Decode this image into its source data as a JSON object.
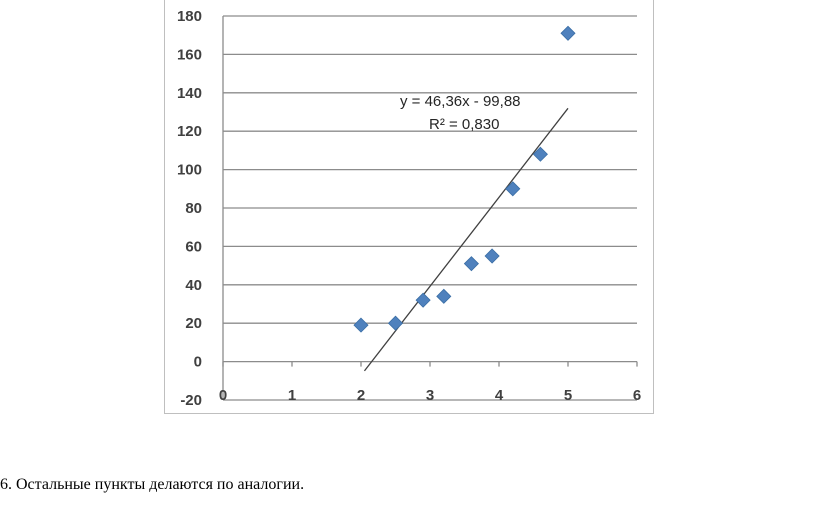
{
  "chart_data": {
    "type": "scatter",
    "xlim": [
      0,
      6
    ],
    "ylim": [
      -20,
      180
    ],
    "x_ticks": [
      "0",
      "1",
      "2",
      "3",
      "4",
      "5",
      "6"
    ],
    "y_ticks": [
      "180",
      "160",
      "140",
      "120",
      "100",
      "80",
      "60",
      "40",
      "20",
      "0",
      "-20"
    ],
    "grid": "horizontal",
    "series": [
      {
        "marker": "diamond",
        "color": "#4F81BD",
        "points": [
          {
            "x": 2.0,
            "y": 19
          },
          {
            "x": 2.5,
            "y": 20
          },
          {
            "x": 2.9,
            "y": 32
          },
          {
            "x": 3.2,
            "y": 34
          },
          {
            "x": 3.6,
            "y": 51
          },
          {
            "x": 3.9,
            "y": 55
          },
          {
            "x": 4.2,
            "y": 90
          },
          {
            "x": 4.6,
            "y": 108
          },
          {
            "x": 5.0,
            "y": 171
          }
        ]
      }
    ],
    "trendline": {
      "slope": 46.36,
      "intercept": -99.88,
      "x_range": [
        2.05,
        5.0
      ],
      "color": "#404040",
      "equation_label": "y = 46,36x  - 99,88",
      "r2_label": "R² = 0,830"
    }
  },
  "footer": {
    "text": "6. Остальные пункты делаются по аналогии."
  }
}
